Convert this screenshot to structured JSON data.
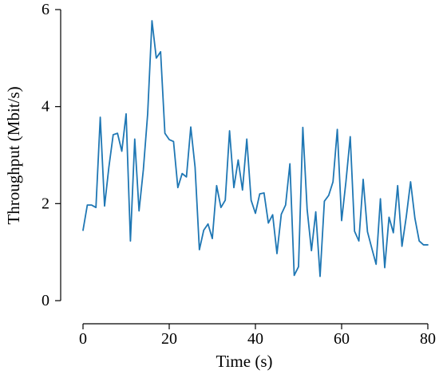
{
  "chart_data": {
    "type": "line",
    "title": "",
    "xlabel": "Time (s)",
    "ylabel": "Throughput (Mbit/s)",
    "xlim": [
      0,
      80
    ],
    "ylim": [
      0,
      6
    ],
    "xticks": [
      0,
      20,
      40,
      60,
      80
    ],
    "yticks": [
      0,
      2,
      4,
      6
    ],
    "grid": false,
    "legend": "none",
    "series": [
      {
        "color": "#1f77b4",
        "x": [
          0,
          1,
          2,
          3,
          4,
          5,
          6,
          7,
          8,
          9,
          10,
          11,
          12,
          13,
          14,
          15,
          16,
          17,
          18,
          19,
          20,
          21,
          22,
          23,
          24,
          25,
          26,
          27,
          28,
          29,
          30,
          31,
          32,
          33,
          34,
          35,
          36,
          37,
          38,
          39,
          40,
          41,
          42,
          43,
          44,
          45,
          46,
          47,
          48,
          49,
          50,
          51,
          52,
          53,
          54,
          55,
          56,
          57,
          58,
          59,
          60,
          61,
          62,
          63,
          64,
          65,
          66,
          67,
          68,
          69,
          70,
          71,
          72,
          73,
          74,
          75,
          76,
          77,
          78,
          79,
          80
        ],
        "y": [
          1.45,
          1.97,
          1.97,
          1.92,
          3.78,
          1.95,
          2.75,
          3.42,
          3.45,
          3.08,
          3.85,
          1.23,
          3.33,
          1.85,
          2.7,
          3.85,
          5.77,
          5.0,
          5.13,
          3.45,
          3.32,
          3.28,
          2.33,
          2.62,
          2.55,
          3.58,
          2.75,
          1.05,
          1.45,
          1.58,
          1.28,
          2.37,
          1.92,
          2.07,
          3.5,
          2.33,
          2.9,
          2.28,
          3.33,
          2.07,
          1.8,
          2.2,
          2.22,
          1.6,
          1.77,
          0.97,
          1.78,
          1.97,
          2.82,
          0.52,
          0.7,
          3.57,
          1.88,
          1.03,
          1.83,
          0.5,
          2.05,
          2.17,
          2.45,
          3.53,
          1.65,
          2.45,
          3.38,
          1.43,
          1.23,
          2.5,
          1.42,
          1.08,
          0.75,
          2.1,
          0.68,
          1.72,
          1.4,
          2.37,
          1.12,
          1.73,
          2.45,
          1.7,
          1.23,
          1.15,
          1.15
        ]
      }
    ]
  }
}
